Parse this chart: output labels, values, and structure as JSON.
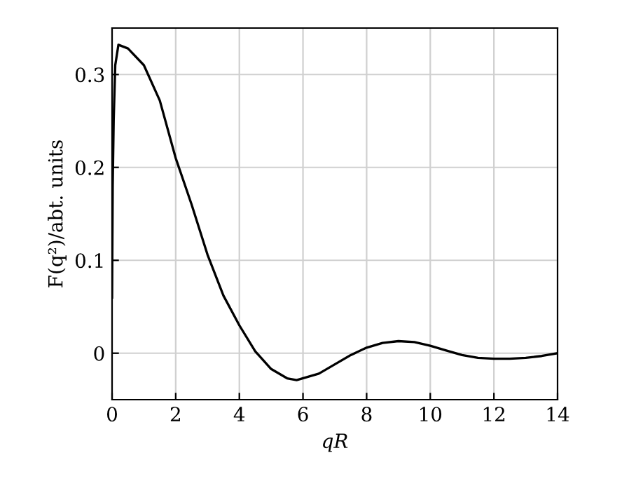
{
  "chart_data": {
    "type": "line",
    "xlabel": "qR",
    "ylabel": "F(q²)/abt. units",
    "series": [
      {
        "color": "#000000",
        "x": [
          0,
          0.02,
          0.05,
          0.1,
          0.2,
          0.5,
          1,
          1.5,
          2,
          2.5,
          3,
          3.5,
          4,
          4.5,
          5,
          5.5,
          5.8,
          6.5,
          7,
          7.5,
          8,
          8.5,
          9,
          9.5,
          10,
          10.5,
          11,
          11.5,
          12,
          12.5,
          13,
          13.5,
          14
        ],
        "values": [
          0.06,
          0.18,
          0.25,
          0.31,
          0.332,
          0.328,
          0.31,
          0.272,
          0.21,
          0.16,
          0.106,
          0.062,
          0.03,
          0.002,
          -0.017,
          -0.027,
          -0.029,
          -0.022,
          -0.012,
          -0.002,
          0.006,
          0.011,
          0.013,
          0.012,
          0.008,
          0.003,
          -0.002,
          -0.005,
          -0.006,
          -0.006,
          -0.005,
          -0.003,
          0.0
        ]
      }
    ],
    "xlim": [
      0,
      14
    ],
    "xticks": [
      0,
      2,
      4,
      6,
      8,
      10,
      12,
      14
    ],
    "ylim": [
      -0.05,
      0.35
    ],
    "yticks": [
      0,
      0.1,
      0.2,
      0.3
    ],
    "grid": true,
    "marker": "none",
    "line_style": "solid"
  }
}
